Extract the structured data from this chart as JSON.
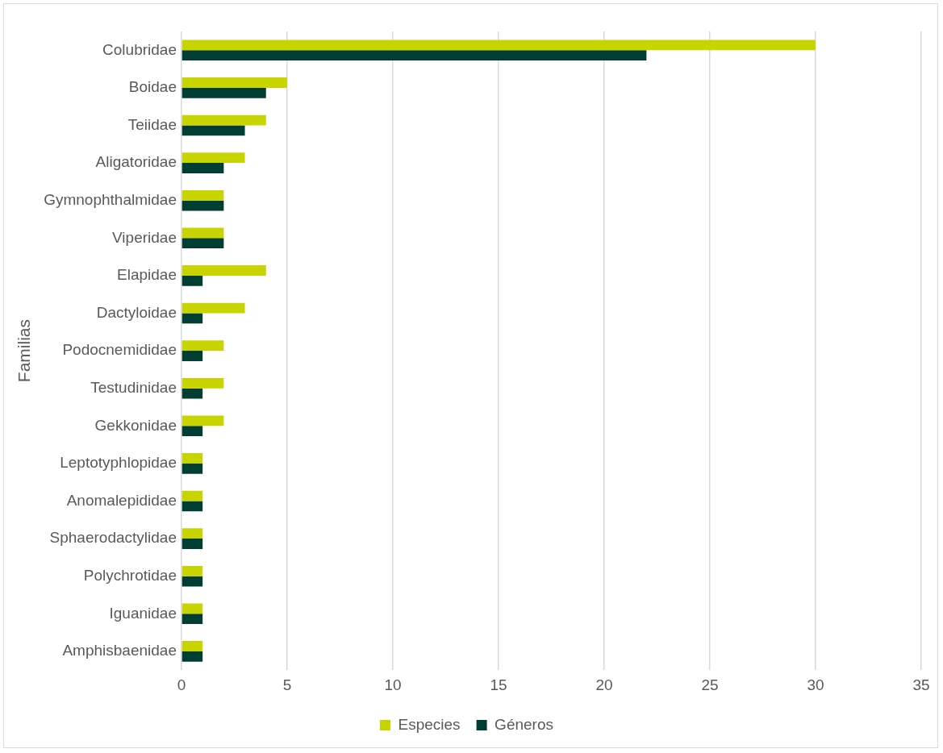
{
  "chart_data": {
    "type": "bar",
    "orientation": "horizontal",
    "ylabel": "Familias",
    "categories": [
      "Colubridae",
      "Boidae",
      "Teiidae",
      "Aligatoridae",
      "Gymnophthalmidae",
      "Viperidae",
      "Elapidae",
      "Dactyloidae",
      "Podocnemididae",
      "Testudinidae",
      "Gekkonidae",
      "Leptotyphlopidae",
      "Anomalepididae",
      "Sphaerodactylidae",
      "Polychrotidae",
      "Iguanidae",
      "Amphisbaenidae"
    ],
    "series": [
      {
        "name": "Especies",
        "color": "#c8d400",
        "values": [
          30,
          5,
          4,
          3,
          2,
          2,
          4,
          3,
          2,
          2,
          2,
          1,
          1,
          1,
          1,
          1,
          1
        ]
      },
      {
        "name": "Géneros",
        "color": "#003d33",
        "values": [
          22,
          4,
          3,
          2,
          2,
          2,
          1,
          1,
          1,
          1,
          1,
          1,
          1,
          1,
          1,
          1,
          1
        ]
      }
    ],
    "xlim": [
      0,
      35
    ],
    "xticks": [
      0,
      5,
      10,
      15,
      20,
      25,
      30,
      35
    ],
    "grid": "x",
    "legend": "bottom"
  }
}
